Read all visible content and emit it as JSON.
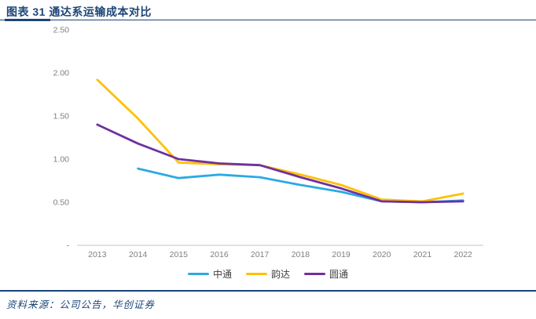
{
  "header": {
    "title": "图表 31  通达系运输成本对比"
  },
  "chart_data": {
    "type": "line",
    "title": "通达系运输成本对比",
    "categories": [
      "2013",
      "2014",
      "2015",
      "2016",
      "2017",
      "2018",
      "2019",
      "2020",
      "2021",
      "2022"
    ],
    "series": [
      {
        "name": "中通",
        "color": "#2baae2",
        "values": [
          null,
          0.89,
          0.78,
          0.82,
          0.79,
          0.7,
          0.62,
          0.51,
          0.5,
          0.52
        ]
      },
      {
        "name": "韵达",
        "color": "#ffc000",
        "values": [
          1.92,
          1.47,
          0.96,
          0.94,
          0.93,
          0.82,
          0.7,
          0.53,
          0.51,
          0.6
        ]
      },
      {
        "name": "圆通",
        "color": "#7030a0",
        "values": [
          1.4,
          1.18,
          1.0,
          0.95,
          0.93,
          0.79,
          0.66,
          0.51,
          0.5,
          0.51
        ]
      }
    ],
    "y_ticks": [
      {
        "label": "2.50",
        "value": 2.5
      },
      {
        "label": "2.00",
        "value": 2.0
      },
      {
        "label": "1.50",
        "value": 1.5
      },
      {
        "label": "1.00",
        "value": 1.0
      },
      {
        "label": "0.50",
        "value": 0.5
      },
      {
        "label": "-",
        "value": 0
      }
    ],
    "ylim": [
      0,
      2.5
    ],
    "grid": false,
    "legend_position": "bottom",
    "axis_color": "#d9d9d9",
    "tick_color": "#7f7f7f"
  },
  "footer": {
    "source": "资料来源：公司公告，华创证券"
  },
  "colors": {
    "accent_navy": "#1c4577"
  }
}
